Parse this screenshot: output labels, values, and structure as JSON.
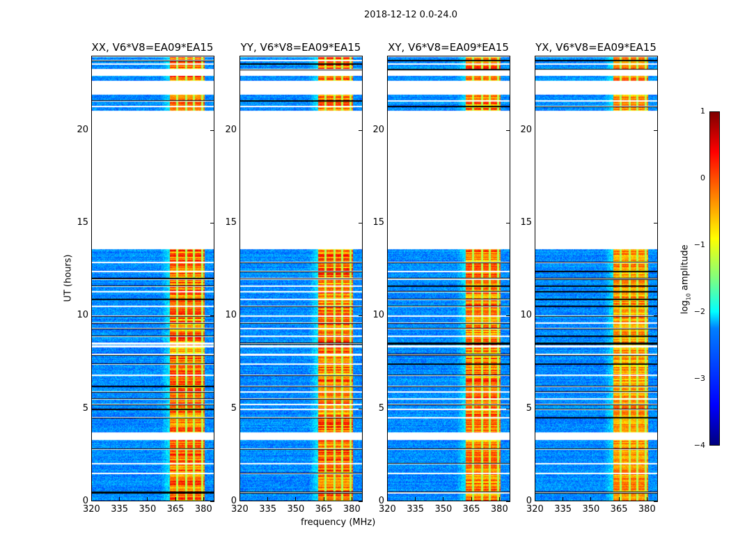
{
  "suptitle": "2018-12-12 0.0-24.0",
  "chart_data": {
    "type": "heatmap",
    "xlabel": "frequency (MHz)",
    "ylabel": "UT (hours)",
    "xlim": [
      320,
      386
    ],
    "ylim": [
      0,
      24
    ],
    "xticks": [
      "320",
      "335",
      "350",
      "365",
      "380"
    ],
    "xtick_values": [
      320,
      335,
      350,
      365,
      380
    ],
    "yticks": [
      "0",
      "5",
      "10",
      "15",
      "20"
    ],
    "ytick_values": [
      0,
      5,
      10,
      15,
      20
    ],
    "panels": [
      {
        "title": "XX, V6*V8=EA09*EA15",
        "band_strength": 1.0
      },
      {
        "title": "YY, V6*V8=EA09*EA15",
        "band_strength": 1.05
      },
      {
        "title": "XY, V6*V8=EA09*EA15",
        "band_strength": 0.95
      },
      {
        "title": "YX, V6*V8=EA09*EA15",
        "band_strength": 0.7
      }
    ],
    "data_time_ranges_hours": [
      [
        0,
        3.3
      ],
      [
        3.7,
        8.3
      ],
      [
        8.4,
        13.6
      ],
      [
        21.1,
        21.95
      ],
      [
        22.7,
        22.95
      ],
      [
        23.25,
        24
      ]
    ],
    "flagged_rows_hours": [
      0.45,
      1.5,
      2.0,
      2.8,
      3.5,
      3.6,
      4.5,
      4.95,
      5.2,
      5.5,
      5.9,
      6.2,
      6.8,
      7.4,
      7.9,
      8.5,
      8.9,
      9.3,
      9.6,
      10.0,
      10.5,
      10.9,
      11.3,
      11.6,
      12.0,
      12.4,
      12.9,
      21.3,
      21.6,
      23.3,
      23.6,
      23.8
    ],
    "bright_band_mhz": [
      362,
      381
    ],
    "bright_band_gap_columns_mhz": [
      366,
      371,
      375,
      379.5
    ],
    "colorbar": {
      "label": "log10 amplitude",
      "label_main": "log",
      "label_sub": "10",
      "label_rest": " amplitude",
      "range": [
        -4,
        1
      ],
      "ticks": [
        "1",
        "0",
        "−1",
        "−2",
        "−3",
        "−4"
      ],
      "tick_values": [
        1,
        0,
        -1,
        -2,
        -3,
        -4
      ],
      "colormap": "jet"
    }
  }
}
